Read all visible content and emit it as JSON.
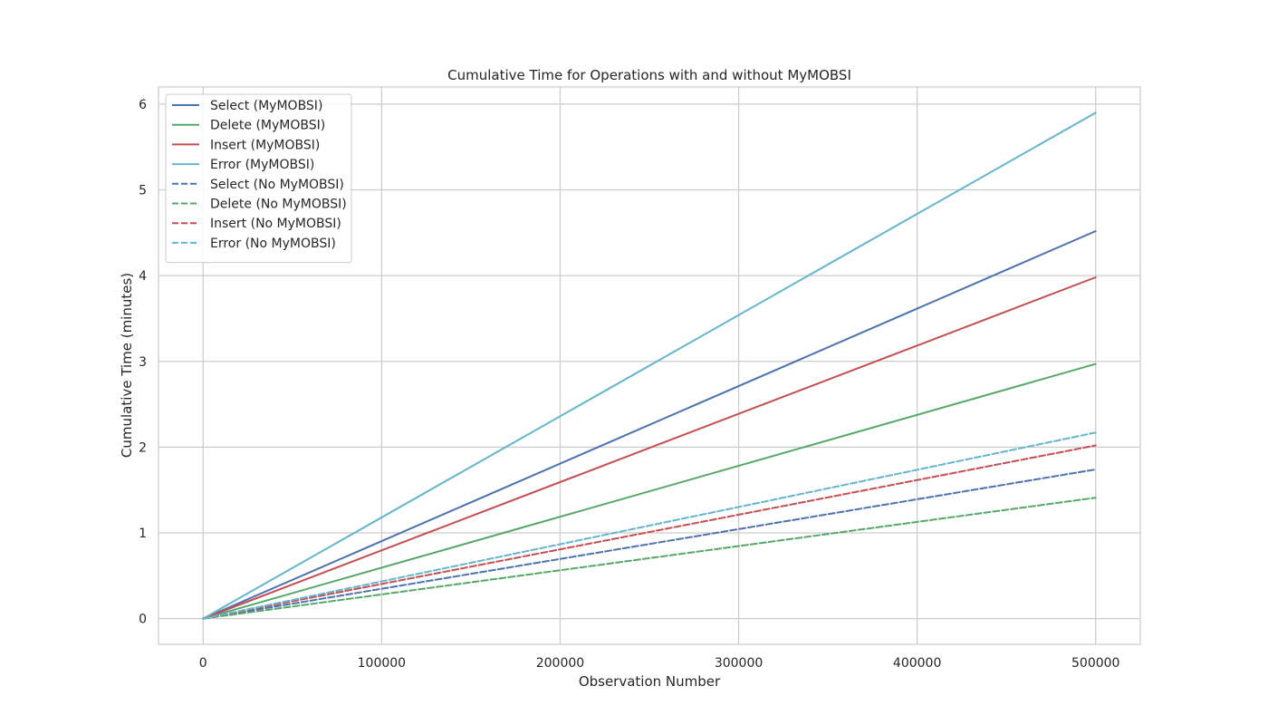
{
  "chart_data": {
    "type": "line",
    "title": "Cumulative Time for Operations with and without MyMOBSI",
    "xlabel": "Observation Number",
    "ylabel": "Cumulative Time (minutes)",
    "xlim": [
      -25000,
      525000
    ],
    "ylim": [
      -0.3,
      6.2
    ],
    "xticks": [
      0,
      100000,
      200000,
      300000,
      400000,
      500000
    ],
    "yticks": [
      0,
      1,
      2,
      3,
      4,
      5,
      6
    ],
    "grid": true,
    "legend_position": "top-left",
    "series": [
      {
        "name": "Select (MyMOBSI)",
        "color": "#4c72b0",
        "dashed": false,
        "x": [
          0,
          500000
        ],
        "y": [
          0,
          4.52
        ]
      },
      {
        "name": "Delete (MyMOBSI)",
        "color": "#55a868",
        "dashed": false,
        "x": [
          0,
          500000
        ],
        "y": [
          0,
          2.97
        ]
      },
      {
        "name": "Insert (MyMOBSI)",
        "color": "#c44e52",
        "dashed": false,
        "x": [
          0,
          500000
        ],
        "y": [
          0,
          3.98
        ]
      },
      {
        "name": "Error (MyMOBSI)",
        "color": "#64b5cd",
        "dashed": false,
        "x": [
          0,
          500000
        ],
        "y": [
          0,
          5.9
        ]
      },
      {
        "name": "Select (No MyMOBSI)",
        "color": "#4c72b0",
        "dashed": true,
        "x": [
          0,
          500000
        ],
        "y": [
          0,
          1.74
        ]
      },
      {
        "name": "Delete (No MyMOBSI)",
        "color": "#55a868",
        "dashed": true,
        "x": [
          0,
          500000
        ],
        "y": [
          0,
          1.41
        ]
      },
      {
        "name": "Insert (No MyMOBSI)",
        "color": "#c44e52",
        "dashed": true,
        "x": [
          0,
          500000
        ],
        "y": [
          0,
          2.02
        ]
      },
      {
        "name": "Error (No MyMOBSI)",
        "color": "#64b5cd",
        "dashed": true,
        "x": [
          0,
          500000
        ],
        "y": [
          0,
          2.17
        ]
      }
    ]
  }
}
